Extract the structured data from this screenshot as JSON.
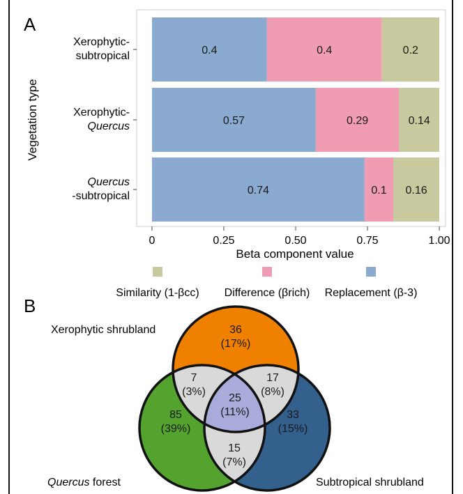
{
  "panel_a_label": "A",
  "panel_b_label": "B",
  "chart_data": [
    {
      "type": "bar",
      "stacked": true,
      "orientation": "horizontal",
      "categories": [
        [
          "Xerophytic-",
          "subtropical"
        ],
        [
          "Xerophytic-",
          "Quercus"
        ],
        [
          "Quercus",
          "-subtropical"
        ]
      ],
      "series": [
        {
          "name": "Replacement (β-3)",
          "color": "#8aaad0",
          "values": [
            0.4,
            0.57,
            0.74
          ],
          "labels": [
            "0.4",
            "0.57",
            "0.74"
          ]
        },
        {
          "name": "Difference (βrich)",
          "color": "#f09cb3",
          "values": [
            0.4,
            0.29,
            0.1
          ],
          "labels": [
            "0.4",
            "0.29",
            "0.1"
          ]
        },
        {
          "name": "Similarity (1-βcc)",
          "color": "#c9c9a0",
          "values": [
            0.2,
            0.14,
            0.16
          ],
          "labels": [
            "0.2",
            "0.14",
            "0.16"
          ]
        }
      ],
      "xlabel": "Beta component value",
      "ylabel": "Vegetation type",
      "xlim": [
        0,
        1
      ],
      "xticks": [
        "0",
        "0.25",
        "0.50",
        "0.75",
        "1.00"
      ],
      "legend": [
        "Similarity (1-βcc)",
        "Difference (βrich)",
        "Replacement (β-3)"
      ],
      "legend_position": "bottom",
      "grid": false
    },
    {
      "type": "venn",
      "sets": [
        {
          "name": "Xerophytic shrubland",
          "color": "#f08000"
        },
        {
          "name": "Quercus forest",
          "name_italic": "Quercus",
          "name_rest": " forest",
          "color": "#54a32e"
        },
        {
          "name": "Subtropical shrubland",
          "color": "#34608e"
        }
      ],
      "regions": [
        {
          "key": "xero_only",
          "count": "36",
          "percent": "(17%)"
        },
        {
          "key": "quercus_only",
          "count": "85",
          "percent": "(39%)"
        },
        {
          "key": "subtropical_only",
          "count": "33",
          "percent": "(15%)"
        },
        {
          "key": "xero_quercus",
          "count": "7",
          "percent": "(3%)"
        },
        {
          "key": "xero_subtropical",
          "count": "17",
          "percent": "(8%)"
        },
        {
          "key": "quercus_subtropical",
          "count": "15",
          "percent": "(7%)"
        },
        {
          "key": "all_three",
          "count": "25",
          "percent": "(11%)"
        }
      ],
      "colors": {
        "pairwise_overlap": "#d9d9d9",
        "triple_overlap": "#a9acdb"
      }
    }
  ]
}
